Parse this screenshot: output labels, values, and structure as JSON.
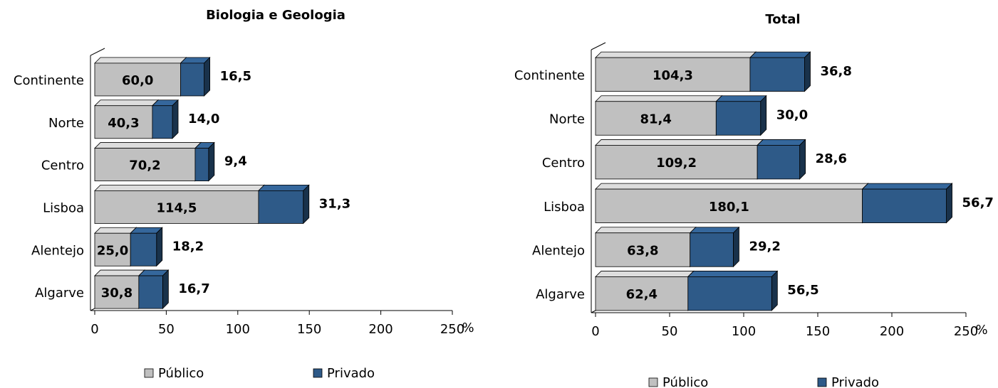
{
  "chart_data": [
    {
      "type": "bar",
      "orientation": "horizontal",
      "stacked": true,
      "title": "Biologia e Geologia",
      "xlabel": "%",
      "categories": [
        "Continente",
        "Norte",
        "Centro",
        "Lisboa",
        "Alentejo",
        "Algarve"
      ],
      "series": [
        {
          "name": "Público",
          "color": "#c0c0c0",
          "values": [
            60.0,
            40.3,
            70.2,
            114.5,
            25.0,
            30.8
          ],
          "value_labels": [
            "60,0",
            "40,3",
            "70,2",
            "114,5",
            "25,0",
            "30,8"
          ]
        },
        {
          "name": "Privado",
          "color": "#2e5a88",
          "values": [
            16.5,
            14.0,
            9.4,
            31.3,
            18.2,
            16.7
          ],
          "value_labels": [
            "16,5",
            "14,0",
            "9,4",
            "31,3",
            "18,2",
            "16,7"
          ]
        }
      ],
      "xlim": [
        0,
        250
      ],
      "xticks": [
        0,
        50,
        100,
        150,
        200,
        250
      ]
    },
    {
      "type": "bar",
      "orientation": "horizontal",
      "stacked": true,
      "title": "Total",
      "xlabel": "%",
      "categories": [
        "Continente",
        "Norte",
        "Centro",
        "Lisboa",
        "Alentejo",
        "Algarve"
      ],
      "series": [
        {
          "name": "Público",
          "color": "#c0c0c0",
          "values": [
            104.3,
            81.4,
            109.2,
            180.1,
            63.8,
            62.4
          ],
          "value_labels": [
            "104,3",
            "81,4",
            "109,2",
            "180,1",
            "63,8",
            "62,4"
          ]
        },
        {
          "name": "Privado",
          "color": "#2e5a88",
          "values": [
            36.8,
            30.0,
            28.6,
            56.7,
            29.2,
            56.5
          ],
          "value_labels": [
            "36,8",
            "30,0",
            "28,6",
            "56,7",
            "29,2",
            "56,5"
          ]
        }
      ],
      "xlim": [
        0,
        250
      ],
      "xticks": [
        0,
        50,
        100,
        150,
        200,
        250
      ]
    }
  ]
}
